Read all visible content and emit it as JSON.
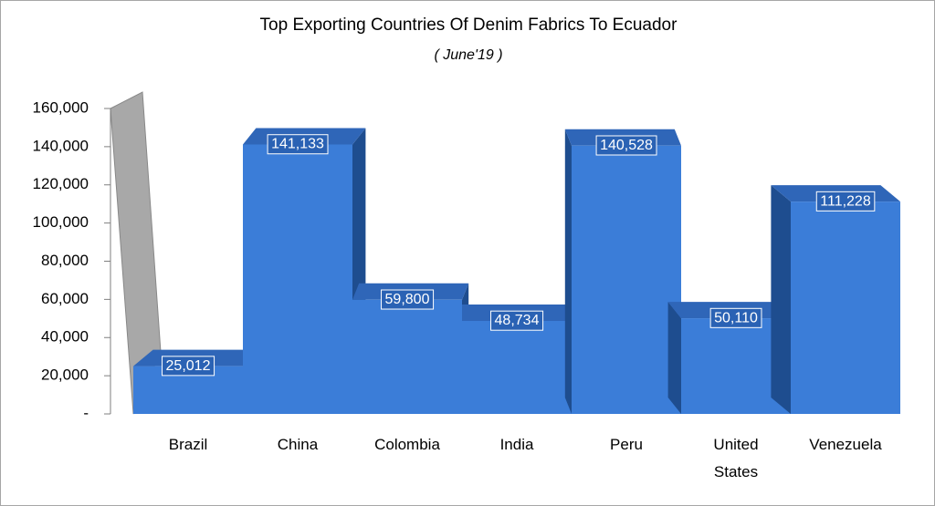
{
  "chart_data": {
    "type": "bar3d",
    "title": "Top Exporting Countries Of Denim Fabrics To Ecuador",
    "subtitle": "( June'19 )",
    "categories": [
      "Brazil",
      "China",
      "Colombia",
      "India",
      "Peru",
      "United States",
      "Venezuela"
    ],
    "values": [
      25012,
      141133,
      59800,
      48734,
      140528,
      50110,
      111228
    ],
    "value_labels": [
      "25,012",
      "141,133",
      "59,800",
      "48,734",
      "140,528",
      "50,110",
      "111,228"
    ],
    "color": "#3b7dd8",
    "ylim": [
      0,
      160000
    ],
    "yticks": [
      {
        "value": 0,
        "label": "-"
      },
      {
        "value": 20000,
        "label": "20,000"
      },
      {
        "value": 40000,
        "label": "40,000"
      },
      {
        "value": 60000,
        "label": "60,000"
      },
      {
        "value": 80000,
        "label": "80,000"
      },
      {
        "value": 100000,
        "label": "100,000"
      },
      {
        "value": 120000,
        "label": "120,000"
      },
      {
        "value": 140000,
        "label": "140,000"
      },
      {
        "value": 160000,
        "label": "160,000"
      }
    ]
  }
}
